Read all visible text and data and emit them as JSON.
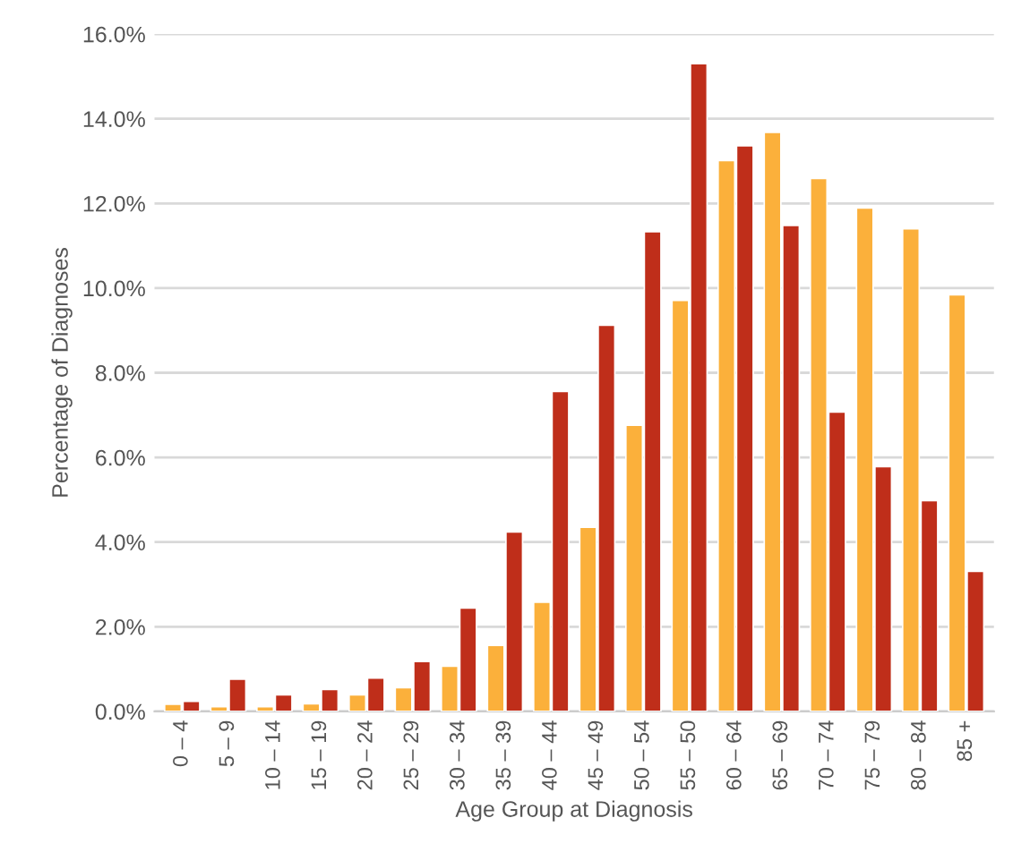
{
  "chart_data": {
    "type": "bar",
    "xlabel": "Age Group at Diagnosis",
    "ylabel": "Percentage of Diagnoses",
    "categories": [
      "0 – 4",
      "5 – 9",
      "10 – 14",
      "15 – 19",
      "20 – 24",
      "25 – 29",
      "30 – 34",
      "35 – 39",
      "40 – 44",
      "45 – 49",
      "50 – 54",
      "55 – 50",
      "60 – 64",
      "65 – 69",
      "70 – 74",
      "75 – 79",
      "80 – 84",
      "85 +"
    ],
    "series": [
      {
        "color": "#fbb03b",
        "values": [
          0.17,
          0.11,
          0.11,
          0.18,
          0.39,
          0.56,
          1.07,
          1.56,
          2.58,
          4.35,
          6.76,
          9.71,
          13.01,
          13.68,
          12.59,
          11.89,
          11.4,
          9.84
        ]
      },
      {
        "color": "#bf2e1a",
        "values": [
          0.24,
          0.76,
          0.39,
          0.52,
          0.79,
          1.18,
          2.44,
          4.24,
          7.56,
          9.12,
          11.33,
          15.3,
          13.36,
          11.48,
          7.07,
          5.78,
          4.98,
          3.31
        ]
      }
    ],
    "ylim": [
      0,
      16
    ],
    "yticks": [
      {
        "value": 0,
        "label": "0.0%"
      },
      {
        "value": 2,
        "label": "2.0%"
      },
      {
        "value": 4,
        "label": "4.0%"
      },
      {
        "value": 6,
        "label": "6.0%"
      },
      {
        "value": 8,
        "label": "8.0%"
      },
      {
        "value": 10,
        "label": "10.0%"
      },
      {
        "value": 12,
        "label": "12.0%"
      },
      {
        "value": 14,
        "label": "14.0%"
      },
      {
        "value": 16,
        "label": "16.0%"
      }
    ],
    "grid": "y"
  }
}
